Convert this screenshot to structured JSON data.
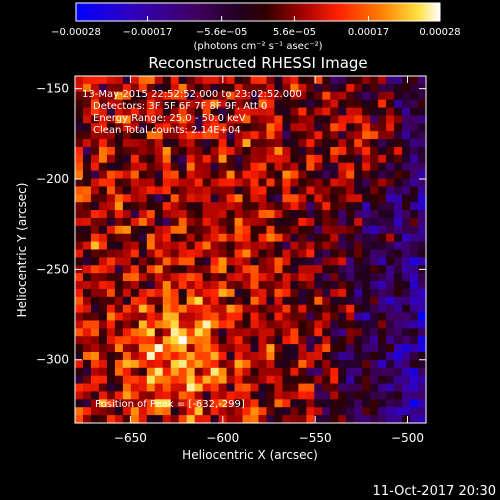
{
  "chart_data": {
    "type": "heatmap",
    "title": "Reconstructed RHESSI Image",
    "xlabel": "Heliocentric X (arcsec)",
    "ylabel": "Heliocentric Y (arcsec)",
    "xlim": [
      -680,
      -490
    ],
    "ylim": [
      -335,
      -143
    ],
    "x_ticks": [
      -650,
      -600,
      -550,
      -500
    ],
    "y_ticks": [
      -150,
      -200,
      -250,
      -300
    ],
    "x_tick_labels": [
      "−650",
      "−600",
      "−550",
      "−500"
    ],
    "y_tick_labels": [
      "−150",
      "−200",
      "−250",
      "−300"
    ],
    "colorbar": {
      "range": [
        -0.00028,
        0.00028
      ],
      "ticks": [
        -0.00028,
        -0.00017,
        -5.6e-05,
        5.6e-05,
        0.00017,
        0.00028
      ],
      "tick_labels": [
        "−0.00028",
        "−0.00017",
        "−5.6e−05",
        "5.6e−05",
        "0.00017",
        "0.00028"
      ],
      "unit_label": "(photons cm⁻² s⁻¹ asec⁻²)"
    },
    "annotations": [
      "13-May-2015 22:52:52.000 to 23:02:52.000",
      "Detectors: 3F 5F 6F 7F 8F 9F, Att 0",
      "Energy Range: 25.0 - 50.0 keV",
      "Clean    Total counts: 2.14E+04"
    ],
    "peak_label": "Position of Peak = [-632,-299]",
    "peak_position": [
      -632,
      -299
    ]
  },
  "footer": {
    "date": "11-Oct-2017 20:30"
  }
}
